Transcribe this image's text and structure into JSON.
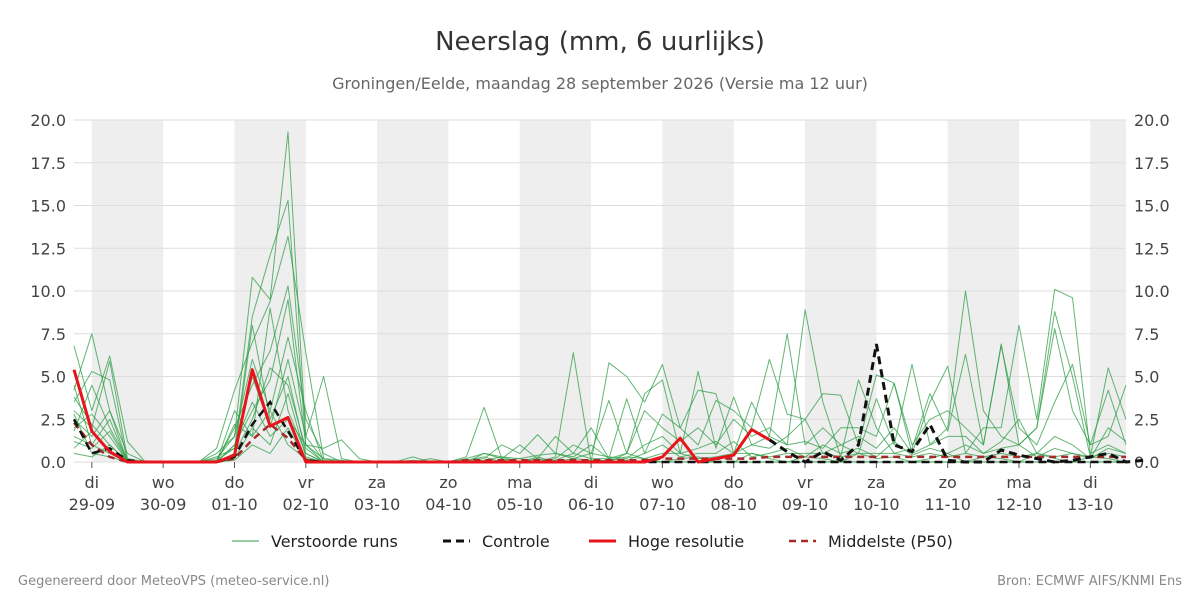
{
  "header": {
    "title": "Neerslag (mm, 6 uurlijks)",
    "subtitle": "Groningen/Eelde, maandag 28 september 2026 (Versie ma 12 uur)"
  },
  "footer": {
    "left": "Gegenereerd door MeteoVPS (meteo-service.nl)",
    "right": "Bron: ECMWF AIFS/KNMI Ens"
  },
  "colors": {
    "ensemble": "#2e9e45",
    "control": "#111111",
    "high_res": "#e8141b",
    "median": "#a52a2a",
    "night_band": "#eeeeee",
    "grid": "#dddddd"
  },
  "chart_data": {
    "type": "line",
    "title": "Neerslag (mm, 6 uurlijks)",
    "subtitle": "Groningen/Eelde, maandag 28 september 2026 (Versie ma 12 uur)",
    "ylim": [
      0,
      20
    ],
    "yticks": [
      "0.0",
      "2.5",
      "5.0",
      "7.5",
      "10.0",
      "12.5",
      "15.0",
      "17.5",
      "20.0"
    ],
    "xlim": [
      0,
      59
    ],
    "x_unit": "6-uurs stap vanaf ma 28-09 18 uur",
    "x_ticks": [
      {
        "x": 1,
        "day": "di",
        "date": "29-09"
      },
      {
        "x": 5,
        "day": "wo",
        "date": "30-09"
      },
      {
        "x": 9,
        "day": "do",
        "date": "01-10"
      },
      {
        "x": 13,
        "day": "vr",
        "date": "02-10"
      },
      {
        "x": 17,
        "day": "za",
        "date": "03-10"
      },
      {
        "x": 21,
        "day": "zo",
        "date": "04-10"
      },
      {
        "x": 25,
        "day": "ma",
        "date": "05-10"
      },
      {
        "x": 29,
        "day": "di",
        "date": "06-10"
      },
      {
        "x": 33,
        "day": "wo",
        "date": "07-10"
      },
      {
        "x": 37,
        "day": "do",
        "date": "08-10"
      },
      {
        "x": 41,
        "day": "vr",
        "date": "09-10"
      },
      {
        "x": 45,
        "day": "za",
        "date": "10-10"
      },
      {
        "x": 49,
        "day": "zo",
        "date": "11-10"
      },
      {
        "x": 53,
        "day": "ma",
        "date": "12-10"
      },
      {
        "x": 57,
        "day": "di",
        "date": "13-10"
      }
    ],
    "shaded_bands": [
      [
        1,
        5
      ],
      [
        9,
        13
      ],
      [
        17,
        21
      ],
      [
        25,
        29
      ],
      [
        33,
        37
      ],
      [
        41,
        45
      ],
      [
        49,
        53
      ],
      [
        57,
        59
      ]
    ],
    "legend": [
      {
        "key": "ensemble",
        "label": "Verstoorde runs"
      },
      {
        "key": "control",
        "label": "Controle"
      },
      {
        "key": "high_res",
        "label": "Hoge resolutie"
      },
      {
        "key": "median",
        "label": "Middelste (P50)"
      }
    ],
    "legend_position": "bottom",
    "control": {
      "name": "Controle",
      "values": [
        2.5,
        0.5,
        0.8,
        0.1,
        0,
        0,
        0,
        0,
        0,
        0.3,
        2.2,
        3.5,
        1.8,
        0.1,
        0,
        0,
        0,
        0,
        0,
        0,
        0,
        0,
        0,
        0,
        0,
        0,
        0,
        0,
        0,
        0,
        0,
        0,
        0,
        0,
        0,
        0,
        0,
        0,
        0,
        0,
        0,
        0,
        0,
        0,
        0,
        0,
        0,
        0,
        0,
        0,
        0,
        0,
        0,
        0,
        0,
        0,
        0,
        0,
        0,
        0
      ]
    },
    "control_late": {
      "x_start": 39,
      "values": [
        1.3,
        0.6,
        0,
        0.6,
        0.1,
        1.0,
        6.9,
        1.0,
        0.6,
        2.2,
        0.1,
        0,
        0,
        0.7,
        0.4,
        0.2,
        0,
        0.1,
        0.3,
        0.5,
        0,
        0.1
      ]
    },
    "high_res": {
      "name": "Hoge resolutie",
      "values": [
        5.4,
        1.8,
        0.6,
        0,
        0,
        0,
        0,
        0,
        0,
        0.4,
        5.4,
        2.1,
        2.6,
        0,
        0,
        0,
        0,
        0,
        0,
        0,
        0,
        0,
        0,
        0,
        0,
        0,
        0,
        0,
        0,
        0,
        0,
        0,
        0,
        0.3,
        1.4,
        0,
        0.2,
        0.4,
        1.9,
        1.3
      ]
    },
    "median": {
      "name": "Middelste (P50)",
      "values": [
        2.3,
        1.0,
        0.3,
        0,
        0,
        0,
        0,
        0,
        0,
        0.2,
        1.3,
        2.2,
        1.4,
        0.1,
        0,
        0,
        0,
        0,
        0,
        0,
        0,
        0,
        0.1,
        0.1,
        0.1,
        0.1,
        0.1,
        0.1,
        0.1,
        0.1,
        0.1,
        0.1,
        0.1,
        0.2,
        0.2,
        0.2,
        0.2,
        0.2,
        0.2,
        0.3,
        0.3,
        0.3,
        0.3,
        0.3,
        0.3,
        0.3,
        0.3,
        0.3,
        0.3,
        0.3,
        0.3,
        0.3,
        0.3,
        0.3,
        0.3,
        0.3,
        0.3,
        0.3,
        0.3,
        0.3
      ]
    },
    "ensemble": [
      {
        "values": [
          6.8,
          3.0,
          6.2,
          1.2,
          0,
          0,
          0,
          0,
          0.5,
          1.5,
          10.8,
          9.5,
          19.3,
          1.5,
          5.0,
          0.2,
          0,
          0,
          0,
          0.3,
          0,
          0,
          0.3,
          3.2,
          0.2,
          0,
          0,
          0.3,
          6.4,
          0,
          5.8,
          5.0,
          3.5,
          5.7,
          2.0,
          1.0,
          3.6,
          3.0,
          2.0,
          6.0,
          2.8,
          2.5,
          4.0,
          3.9,
          1.0,
          5.1,
          4.6,
          0.5,
          3.5,
          5.6,
          0.5,
          2.0,
          2.0,
          8.0,
          2.5,
          10.1,
          9.6,
          0.5,
          1.0,
          0.5
        ]
      },
      {
        "values": [
          4.2,
          7.5,
          3.0,
          0.5,
          0,
          0,
          0,
          0,
          0.3,
          0.8,
          8.5,
          12.1,
          15.3,
          1.0,
          0.8,
          1.3,
          0.2,
          0,
          0,
          0,
          0.2,
          0,
          0,
          0.5,
          0.3,
          0,
          0,
          0.2,
          1.0,
          0.5,
          3.6,
          0.5,
          4.0,
          4.8,
          0.5,
          5.3,
          0.8,
          3.8,
          1.0,
          1.5,
          7.5,
          1.0,
          2.0,
          1.0,
          0.5,
          3.7,
          1.0,
          5.7,
          1.0,
          2.0,
          10.0,
          3.0,
          1.5,
          1.0,
          2.0,
          8.8,
          5.0,
          0.3,
          5.5,
          2.5
        ]
      },
      {
        "values": [
          3.5,
          5.3,
          4.8,
          0,
          0,
          0,
          0,
          0,
          0.8,
          4.2,
          7.0,
          9.4,
          13.2,
          6.4,
          0.2,
          0.1,
          0,
          0,
          0,
          0.1,
          0,
          0,
          0.1,
          0.2,
          1.0,
          0.5,
          1.6,
          0.5,
          0.3,
          1.0,
          0.2,
          3.7,
          0.5,
          2.8,
          2.0,
          4.2,
          4.0,
          0.5,
          3.5,
          1.5,
          1.0,
          8.9,
          3.5,
          0.3,
          4.8,
          2.0,
          0.5,
          0.8,
          4.0,
          1.8,
          6.3,
          1.0,
          6.9,
          1.0,
          2.0,
          7.8,
          3.0,
          1.0,
          4.2,
          1.0
        ]
      },
      {
        "values": [
          3.0,
          2.0,
          5.9,
          0.2,
          0,
          0,
          0,
          0,
          0,
          2.0,
          4.5,
          6.5,
          10.3,
          2.5,
          0.5,
          0,
          0,
          0,
          0,
          0,
          0,
          0,
          0.2,
          0.5,
          0.2,
          1.0,
          0.2,
          1.5,
          0.5,
          2.0,
          0.2,
          0.5,
          3.0,
          2.0,
          1.2,
          2.0,
          1.0,
          2.5,
          1.5,
          2.0,
          1.0,
          1.2,
          0.8,
          2.0,
          2.0,
          1.5,
          4.6,
          1.0,
          2.5,
          3.0,
          2.0,
          1.0,
          6.8,
          2.0,
          1.0,
          3.5,
          5.7,
          1.0,
          1.5,
          4.5
        ]
      },
      {
        "values": [
          2.5,
          1.5,
          3.0,
          0,
          0,
          0,
          0,
          0,
          0,
          1.0,
          3.0,
          4.8,
          9.5,
          1.0,
          0.2,
          0,
          0,
          0,
          0,
          0,
          0,
          0,
          0,
          0.1,
          0.3,
          0.2,
          0.4,
          0.5,
          0.2,
          0.5,
          0.3,
          0.2,
          1.0,
          1.5,
          0.5,
          0.8,
          1.2,
          0.5,
          1.0,
          0.8,
          1.5,
          2.5,
          0.5,
          1.0,
          1.5,
          0.8,
          2.0,
          0.5,
          1.0,
          1.5,
          1.5,
          0.5,
          1.2,
          2.5,
          0.5,
          1.5,
          1.0,
          0.2,
          2.0,
          1.2
        ]
      },
      {
        "values": [
          2.0,
          2.8,
          1.5,
          0,
          0,
          0,
          0,
          0,
          0.2,
          1.5,
          6.0,
          3.0,
          7.3,
          3.0,
          0,
          0,
          0,
          0,
          0,
          0,
          0,
          0,
          0,
          0,
          0.1,
          0.2,
          0,
          0.1,
          0.5,
          0.2,
          0.2,
          0.1,
          0.5,
          1.0,
          0.3,
          0.5,
          0.5,
          1.2,
          0.3,
          0.5,
          0.8,
          0.3,
          1.0,
          0.5,
          0.8,
          0.3,
          1.2,
          0.4,
          0.8,
          0.5,
          1.0,
          0.5,
          0.8,
          1.0,
          0.3,
          0.8,
          0.5,
          0.2,
          0.8,
          0.5
        ]
      },
      {
        "values": [
          1.8,
          4.5,
          2.0,
          0.1,
          0,
          0,
          0,
          0,
          0.1,
          0.8,
          5.0,
          2.0,
          6.0,
          1.5,
          0.1,
          0,
          0,
          0,
          0,
          0,
          0,
          0,
          0.1,
          0.3,
          0,
          0,
          0.2,
          0,
          0.2,
          0.1,
          0.1,
          0.3,
          0.2,
          0.5,
          0.5,
          0.2,
          0.3,
          0.5,
          0.5,
          0.3,
          0.5,
          0.5,
          0.5,
          0.3,
          0.5,
          0.5,
          0.5,
          0.3,
          0.5,
          0.3,
          0.5,
          0.3,
          0.5,
          0.3,
          0.5,
          0.3,
          0.5,
          0.3,
          0.5,
          0.3
        ]
      },
      {
        "values": [
          1.5,
          1.0,
          2.5,
          0,
          0,
          0,
          0,
          0,
          0,
          0.5,
          2.5,
          5.5,
          4.5,
          0.8,
          0,
          0,
          0,
          0,
          0,
          0,
          0,
          0,
          0,
          0,
          0,
          0,
          0,
          0,
          0,
          0,
          0,
          0,
          0,
          0,
          0,
          0,
          0,
          0,
          0,
          0,
          0,
          0,
          0,
          0,
          0,
          0,
          0,
          0,
          0,
          0,
          0,
          0,
          0,
          0,
          0,
          0,
          0,
          0,
          0,
          0
        ]
      },
      {
        "values": [
          3.8,
          2.2,
          1.0,
          0,
          0,
          0,
          0,
          0,
          0,
          3.0,
          1.5,
          9.0,
          3.0,
          0.5,
          0,
          0,
          0,
          0,
          0,
          0,
          0,
          0,
          0,
          0,
          0,
          0,
          0.3,
          0,
          0,
          0,
          0,
          0.5,
          0.2,
          0,
          0.2,
          0.3,
          0,
          0,
          0.5,
          0.2,
          0,
          0.3,
          0.2,
          0,
          0.5,
          0.2,
          0.3,
          0,
          0.2,
          0.5,
          0,
          0.3,
          0.2,
          0,
          0.5,
          0.2,
          0,
          0.3,
          0.2,
          0
        ]
      },
      {
        "values": [
          1.2,
          0.8,
          1.8,
          0,
          0,
          0,
          0,
          0,
          0,
          0.2,
          2.0,
          1.0,
          4.0,
          0.3,
          0,
          0,
          0,
          0,
          0,
          0,
          0,
          0,
          0,
          0,
          0,
          0,
          0,
          0,
          0,
          0,
          0,
          0,
          0,
          0,
          0,
          0,
          0,
          0,
          0,
          0,
          0,
          0,
          0,
          0,
          0,
          0,
          0,
          0,
          0,
          0,
          0,
          0,
          0,
          0,
          0,
          0,
          0,
          0,
          0,
          0
        ]
      },
      {
        "values": [
          0.5,
          0.3,
          1.0,
          0,
          0,
          0,
          0,
          0,
          0,
          0.1,
          1.0,
          0.5,
          2.0,
          0.2,
          0,
          0,
          0,
          0,
          0,
          0,
          0,
          0,
          0,
          0,
          0,
          0,
          0,
          0,
          0,
          0,
          0,
          0,
          0,
          0,
          0,
          0,
          0,
          0,
          0,
          0,
          0,
          0,
          0,
          0,
          0,
          0,
          0,
          0,
          0,
          0,
          0,
          0,
          0,
          0,
          0,
          0,
          0,
          0,
          0,
          0
        ]
      },
      {
        "values": [
          4.5,
          1.0,
          0.5,
          0,
          0,
          0,
          0,
          0,
          0,
          0.5,
          8.0,
          2.5,
          5.0,
          0.5,
          0,
          0,
          0,
          0,
          0,
          0,
          0,
          0,
          0,
          0,
          0,
          0,
          0,
          0,
          0,
          0,
          0,
          0,
          0,
          0,
          0,
          0,
          0,
          0,
          0,
          0,
          0,
          0,
          0,
          0,
          0,
          0,
          0,
          0,
          0,
          0,
          0,
          0,
          0,
          0,
          0,
          0,
          0,
          0,
          0,
          0
        ]
      },
      {
        "values": [
          2.8,
          0.5,
          0.3,
          0,
          0,
          0,
          0,
          0,
          0,
          1.0,
          3.5,
          1.5,
          2.5,
          1.0,
          0,
          0,
          0,
          0,
          0,
          0,
          0,
          0,
          0,
          0,
          0,
          0,
          0,
          0,
          0,
          0,
          0,
          0,
          0,
          0,
          0,
          0,
          0,
          0,
          0,
          0,
          0,
          0,
          0,
          0,
          0,
          0,
          0,
          0,
          0,
          0,
          0,
          0,
          0,
          0,
          0,
          0,
          0,
          0,
          0,
          0
        ]
      },
      {
        "values": [
          0.8,
          1.8,
          0.6,
          0,
          0,
          0,
          0,
          0,
          0,
          2.2,
          1.5,
          3.0,
          1.0,
          0.2,
          0,
          0,
          0,
          0,
          0,
          0,
          0,
          0,
          0,
          0,
          0,
          0,
          0,
          0,
          0,
          0,
          0,
          0,
          0,
          0,
          0,
          0,
          0,
          0,
          0,
          0,
          0,
          0,
          0,
          0,
          0,
          0,
          0,
          0,
          0,
          0,
          0,
          0,
          0,
          0,
          0,
          0,
          0,
          0,
          0,
          0
        ]
      }
    ]
  }
}
